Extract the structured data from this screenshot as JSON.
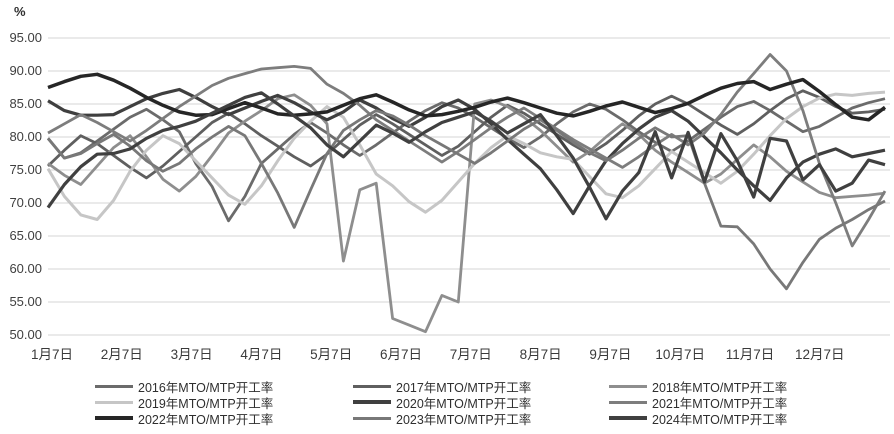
{
  "chart_data": {
    "type": "line",
    "title": "",
    "unit_label": "%",
    "xlabel": "",
    "ylabel": "%",
    "ylim": [
      50,
      95
    ],
    "y_step": 5,
    "grid": true,
    "legend_position": "bottom",
    "y_tick_labels": [
      "95.00",
      "90.00",
      "85.00",
      "80.00",
      "75.00",
      "70.00",
      "65.00",
      "60.00",
      "55.00",
      "50.00"
    ],
    "x_tick_labels": [
      "1月7日",
      "2月7日",
      "3月7日",
      "4月7日",
      "5月7日",
      "6月7日",
      "7月7日",
      "8月7日",
      "9月7日",
      "10月7日",
      "11月7日",
      "12月7日"
    ],
    "points_per_series": 52,
    "series": [
      {
        "name": "2016年MTO/MTP开工率",
        "color": "#6b6b6b",
        "width": 2.8,
        "values": [
          79.8,
          76.8,
          77.6,
          79.4,
          81.2,
          83.0,
          84.2,
          82.6,
          80.8,
          76.0,
          72.5,
          67.3,
          71.0,
          76.0,
          78.2,
          80.4,
          82.2,
          80.6,
          78.8,
          77.2,
          78.8,
          80.6,
          82.4,
          84.0,
          85.2,
          84.4,
          83.0,
          81.4,
          79.8,
          78.4,
          80.0,
          82.0,
          83.8,
          85.0,
          84.2,
          82.6,
          80.8,
          79.2,
          77.8,
          79.4,
          81.2,
          83.0,
          84.6,
          85.4,
          84.0,
          82.4,
          80.8,
          81.6,
          83.0,
          84.4,
          85.2,
          85.8
        ]
      },
      {
        "name": "2017年MTO/MTP开工率",
        "color": "#5f5f5f",
        "width": 2.8,
        "values": [
          75.6,
          78.0,
          80.2,
          79.0,
          77.2,
          75.4,
          73.8,
          75.6,
          77.8,
          80.0,
          82.2,
          83.6,
          82.0,
          80.2,
          78.6,
          77.0,
          75.6,
          77.4,
          79.6,
          81.8,
          83.4,
          82.0,
          80.4,
          78.8,
          77.2,
          78.6,
          80.8,
          83.0,
          84.8,
          83.6,
          82.0,
          80.4,
          78.8,
          77.4,
          79.0,
          81.0,
          83.2,
          85.0,
          86.2,
          85.0,
          83.4,
          81.8,
          80.4,
          82.0,
          84.0,
          85.8,
          87.0,
          86.0,
          84.6,
          83.6,
          83.8,
          84.2
        ]
      },
      {
        "name": "2018年MTO/MTP开工率",
        "color": "#8e8e8e",
        "width": 2.8,
        "values": [
          76.0,
          74.2,
          72.8,
          75.6,
          78.4,
          80.2,
          77.0,
          73.6,
          71.8,
          74.0,
          77.2,
          80.6,
          82.4,
          84.0,
          85.8,
          86.4,
          84.8,
          82.0,
          61.2,
          72.0,
          73.0,
          52.5,
          51.5,
          50.5,
          56.0,
          55.0,
          85.0,
          85.6,
          84.6,
          83.0,
          81.0,
          78.6,
          76.2,
          77.8,
          80.0,
          82.0,
          80.4,
          78.0,
          76.2,
          74.6,
          73.0,
          74.4,
          76.6,
          78.8,
          77.0,
          74.8,
          73.2,
          71.6,
          70.8,
          71.0,
          71.2,
          71.5
        ]
      },
      {
        "name": "2019年MTO/MTP开工率",
        "color": "#c6c6c6",
        "width": 3.0,
        "values": [
          75.2,
          71.0,
          68.2,
          67.5,
          70.4,
          74.8,
          78.0,
          80.2,
          79.0,
          76.4,
          73.8,
          71.2,
          69.8,
          72.6,
          76.4,
          79.8,
          82.4,
          84.6,
          83.0,
          78.8,
          74.4,
          72.6,
          70.2,
          68.6,
          70.4,
          73.2,
          76.0,
          78.4,
          80.2,
          79.0,
          77.6,
          77.0,
          76.6,
          74.0,
          71.4,
          70.8,
          72.6,
          75.2,
          77.8,
          76.2,
          74.6,
          73.0,
          74.8,
          77.4,
          80.2,
          82.8,
          84.6,
          85.9,
          86.5,
          86.3,
          86.6,
          86.8
        ]
      },
      {
        "name": "2020年MTO/MTP开工率",
        "color": "#3f3f3f",
        "width": 3.2,
        "values": [
          85.5,
          84.0,
          83.3,
          83.3,
          83.4,
          84.6,
          85.8,
          86.6,
          87.2,
          86.0,
          84.6,
          83.4,
          84.4,
          85.4,
          86.3,
          85.2,
          83.8,
          82.6,
          83.8,
          85.6,
          84.4,
          82.8,
          81.6,
          83.0,
          84.6,
          85.6,
          84.2,
          82.0,
          79.6,
          77.4,
          75.2,
          72.0,
          68.4,
          72.6,
          76.4,
          79.0,
          81.2,
          83.0,
          84.0,
          82.4,
          80.0,
          77.6,
          75.0,
          72.6,
          70.4,
          73.8,
          76.2,
          77.4,
          78.2,
          77.0,
          77.5,
          78.0
        ]
      },
      {
        "name": "2021年MTO/MTP开工率",
        "color": "#7d7d7d",
        "width": 2.8,
        "values": [
          80.6,
          82.0,
          83.4,
          82.2,
          80.8,
          79.4,
          81.0,
          82.8,
          84.6,
          86.2,
          87.8,
          88.9,
          89.6,
          90.3,
          90.5,
          90.7,
          90.4,
          88.0,
          86.6,
          84.8,
          82.6,
          81.0,
          79.4,
          77.8,
          76.2,
          77.8,
          79.6,
          81.4,
          83.0,
          84.4,
          82.8,
          81.2,
          79.6,
          78.2,
          76.8,
          75.4,
          77.0,
          78.8,
          80.4,
          78.8,
          80.6,
          83.4,
          86.8,
          89.6,
          92.5,
          90.0,
          84.0,
          76.0,
          70.0,
          63.5,
          67.5,
          71.8
        ]
      },
      {
        "name": "2022年MTO/MTP开工率",
        "color": "#262626",
        "width": 3.5,
        "values": [
          87.5,
          88.4,
          89.2,
          89.5,
          88.6,
          87.4,
          86.0,
          84.8,
          83.8,
          83.3,
          83.4,
          84.3,
          85.2,
          84.4,
          83.5,
          83.3,
          83.5,
          83.8,
          84.8,
          85.8,
          86.4,
          85.3,
          84.1,
          83.2,
          83.4,
          83.9,
          84.5,
          85.3,
          85.9,
          85.2,
          84.4,
          83.6,
          83.2,
          83.9,
          84.7,
          85.3,
          84.5,
          83.7,
          84.3,
          85.1,
          86.3,
          87.4,
          88.1,
          88.4,
          87.2,
          88.0,
          88.7,
          86.9,
          84.9,
          83.0,
          82.6,
          84.5
        ]
      },
      {
        "name": "2023年MTO/MTP开工率",
        "color": "#787878",
        "width": 2.8,
        "values": [
          79.8,
          76.8,
          77.5,
          79.0,
          80.4,
          78.6,
          76.4,
          74.8,
          76.0,
          78.2,
          80.0,
          81.6,
          80.2,
          76.0,
          71.5,
          66.3,
          72.0,
          77.5,
          81.0,
          82.6,
          84.0,
          83.2,
          81.8,
          80.2,
          78.8,
          77.4,
          76.0,
          77.6,
          79.4,
          81.2,
          82.6,
          81.0,
          79.2,
          77.6,
          76.4,
          78.0,
          79.8,
          81.4,
          80.0,
          80.2,
          73.0,
          66.5,
          66.4,
          63.8,
          60.0,
          57.0,
          61.0,
          64.5,
          66.2,
          67.5,
          69.0,
          70.3
        ]
      },
      {
        "name": "2024年MTO/MTP开工率",
        "color": "#404040",
        "width": 3.2,
        "values": [
          69.3,
          72.8,
          75.5,
          77.4,
          77.5,
          78.2,
          79.8,
          81.0,
          81.6,
          82.4,
          83.6,
          84.8,
          86.0,
          86.7,
          85.0,
          83.2,
          81.4,
          78.8,
          77.0,
          79.4,
          81.8,
          80.6,
          79.2,
          80.8,
          82.2,
          83.0,
          83.8,
          82.4,
          80.6,
          82.0,
          83.4,
          80.2,
          76.8,
          72.4,
          67.6,
          71.8,
          74.6,
          80.8,
          73.8,
          80.7,
          73.2,
          80.5,
          76.4,
          70.9,
          79.8,
          79.4,
          73.5,
          75.8,
          71.8,
          73.0,
          76.5,
          75.8
        ]
      }
    ]
  }
}
